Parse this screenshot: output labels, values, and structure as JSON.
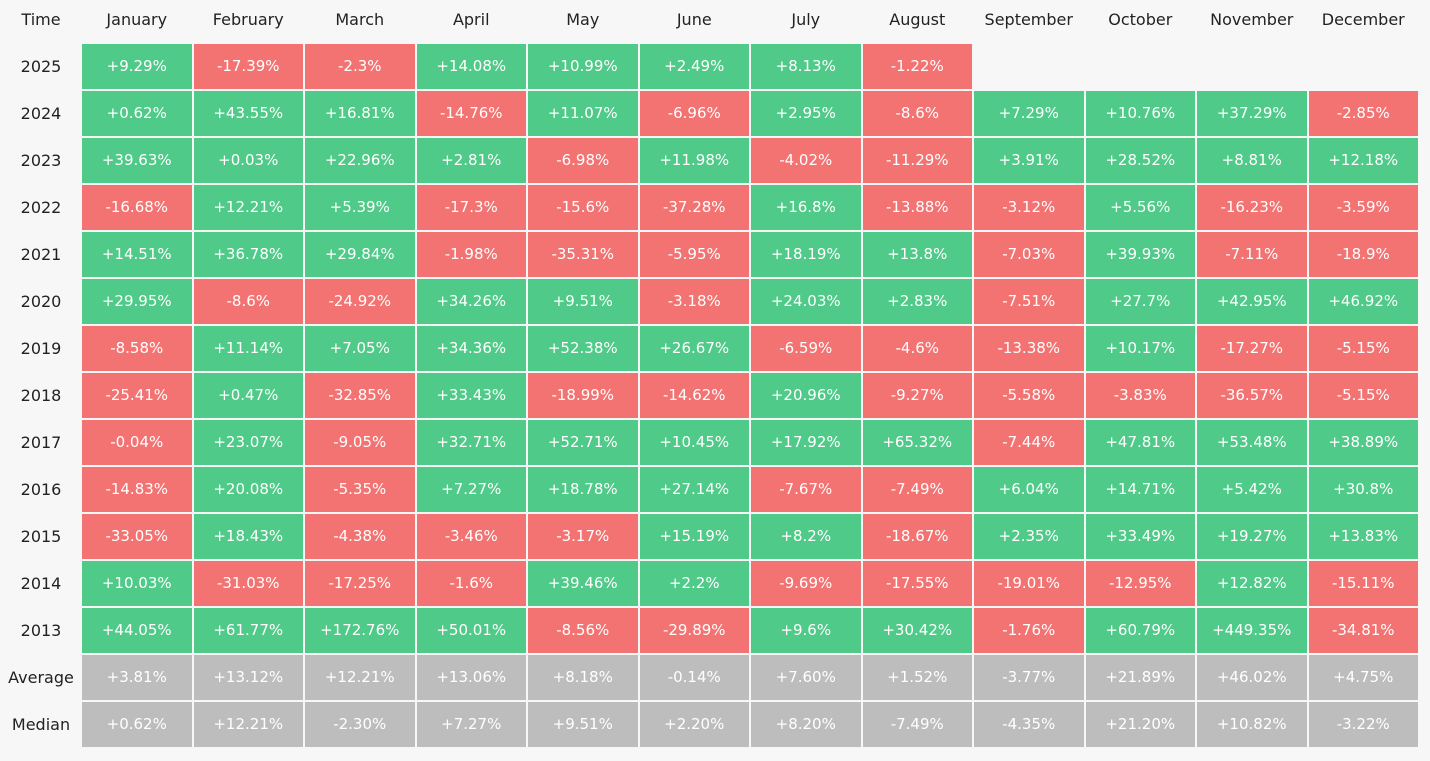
{
  "chart_data": {
    "type": "heatmap",
    "title": "",
    "corner_label": "Time",
    "columns": [
      "January",
      "February",
      "March",
      "April",
      "May",
      "June",
      "July",
      "August",
      "September",
      "October",
      "November",
      "December"
    ],
    "rows": [
      {
        "label": "2025",
        "values": [
          "+9.29%",
          "-17.39%",
          "-2.3%",
          "+14.08%",
          "+10.99%",
          "+2.49%",
          "+8.13%",
          "-1.22%",
          null,
          null,
          null,
          null
        ]
      },
      {
        "label": "2024",
        "values": [
          "+0.62%",
          "+43.55%",
          "+16.81%",
          "-14.76%",
          "+11.07%",
          "-6.96%",
          "+2.95%",
          "-8.6%",
          "+7.29%",
          "+10.76%",
          "+37.29%",
          "-2.85%"
        ]
      },
      {
        "label": "2023",
        "values": [
          "+39.63%",
          "+0.03%",
          "+22.96%",
          "+2.81%",
          "-6.98%",
          "+11.98%",
          "-4.02%",
          "-11.29%",
          "+3.91%",
          "+28.52%",
          "+8.81%",
          "+12.18%"
        ]
      },
      {
        "label": "2022",
        "values": [
          "-16.68%",
          "+12.21%",
          "+5.39%",
          "-17.3%",
          "-15.6%",
          "-37.28%",
          "+16.8%",
          "-13.88%",
          "-3.12%",
          "+5.56%",
          "-16.23%",
          "-3.59%"
        ]
      },
      {
        "label": "2021",
        "values": [
          "+14.51%",
          "+36.78%",
          "+29.84%",
          "-1.98%",
          "-35.31%",
          "-5.95%",
          "+18.19%",
          "+13.8%",
          "-7.03%",
          "+39.93%",
          "-7.11%",
          "-18.9%"
        ]
      },
      {
        "label": "2020",
        "values": [
          "+29.95%",
          "-8.6%",
          "-24.92%",
          "+34.26%",
          "+9.51%",
          "-3.18%",
          "+24.03%",
          "+2.83%",
          "-7.51%",
          "+27.7%",
          "+42.95%",
          "+46.92%"
        ]
      },
      {
        "label": "2019",
        "values": [
          "-8.58%",
          "+11.14%",
          "+7.05%",
          "+34.36%",
          "+52.38%",
          "+26.67%",
          "-6.59%",
          "-4.6%",
          "-13.38%",
          "+10.17%",
          "-17.27%",
          "-5.15%"
        ]
      },
      {
        "label": "2018",
        "values": [
          "-25.41%",
          "+0.47%",
          "-32.85%",
          "+33.43%",
          "-18.99%",
          "-14.62%",
          "+20.96%",
          "-9.27%",
          "-5.58%",
          "-3.83%",
          "-36.57%",
          "-5.15%"
        ]
      },
      {
        "label": "2017",
        "values": [
          "-0.04%",
          "+23.07%",
          "-9.05%",
          "+32.71%",
          "+52.71%",
          "+10.45%",
          "+17.92%",
          "+65.32%",
          "-7.44%",
          "+47.81%",
          "+53.48%",
          "+38.89%"
        ]
      },
      {
        "label": "2016",
        "values": [
          "-14.83%",
          "+20.08%",
          "-5.35%",
          "+7.27%",
          "+18.78%",
          "+27.14%",
          "-7.67%",
          "-7.49%",
          "+6.04%",
          "+14.71%",
          "+5.42%",
          "+30.8%"
        ]
      },
      {
        "label": "2015",
        "values": [
          "-33.05%",
          "+18.43%",
          "-4.38%",
          "-3.46%",
          "-3.17%",
          "+15.19%",
          "+8.2%",
          "-18.67%",
          "+2.35%",
          "+33.49%",
          "+19.27%",
          "+13.83%"
        ]
      },
      {
        "label": "2014",
        "values": [
          "+10.03%",
          "-31.03%",
          "-17.25%",
          "-1.6%",
          "+39.46%",
          "+2.2%",
          "-9.69%",
          "-17.55%",
          "-19.01%",
          "-12.95%",
          "+12.82%",
          "-15.11%"
        ]
      },
      {
        "label": "2013",
        "values": [
          "+44.05%",
          "+61.77%",
          "+172.76%",
          "+50.01%",
          "-8.56%",
          "-29.89%",
          "+9.6%",
          "+30.42%",
          "-1.76%",
          "+60.79%",
          "+449.35%",
          "-34.81%"
        ]
      }
    ],
    "summary_rows": [
      {
        "label": "Average",
        "values": [
          "+3.81%",
          "+13.12%",
          "+12.21%",
          "+13.06%",
          "+8.18%",
          "-0.14%",
          "+7.60%",
          "+1.52%",
          "-3.77%",
          "+21.89%",
          "+46.02%",
          "+4.75%"
        ]
      },
      {
        "label": "Median",
        "values": [
          "+0.62%",
          "+12.21%",
          "-2.30%",
          "+7.27%",
          "+9.51%",
          "+2.20%",
          "+8.20%",
          "-7.49%",
          "-4.35%",
          "+21.20%",
          "+10.82%",
          "-3.22%"
        ]
      }
    ],
    "colors": {
      "positive": "#4fca88",
      "negative": "#f27372",
      "summary": "#bdbdbd"
    }
  }
}
